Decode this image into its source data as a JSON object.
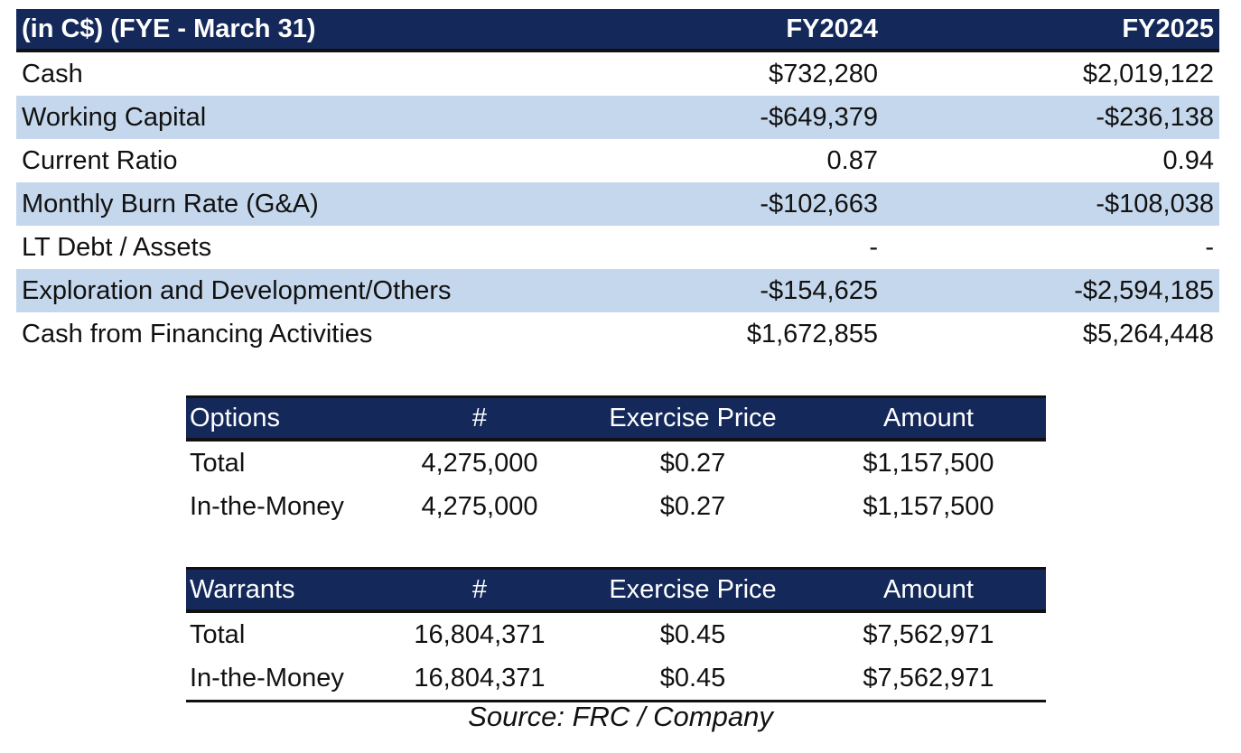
{
  "summary": {
    "header": {
      "label": "(in C$)  (FYE - March 31)",
      "col1": "FY2024",
      "col2": "FY2025"
    },
    "rows": [
      {
        "label": "Cash",
        "fy2024": "$732,280",
        "fy2025": "$2,019,122"
      },
      {
        "label": "Working Capital",
        "fy2024": "-$649,379",
        "fy2025": "-$236,138"
      },
      {
        "label": "Current Ratio",
        "fy2024": "0.87",
        "fy2025": "0.94"
      },
      {
        "label": "Monthly Burn Rate (G&A)",
        "fy2024": "-$102,663",
        "fy2025": "-$108,038"
      },
      {
        "label": "LT Debt / Assets",
        "fy2024": "-",
        "fy2025": "-"
      },
      {
        "label": "Exploration and Development/Others",
        "fy2024": "-$154,625",
        "fy2025": "-$2,594,185"
      },
      {
        "label": "Cash from Financing Activities",
        "fy2024": "$1,672,855",
        "fy2025": "$5,264,448"
      }
    ]
  },
  "options": {
    "header": {
      "label": "Options",
      "count": "#",
      "price": "Exercise Price",
      "amount": "Amount"
    },
    "rows": [
      {
        "label": "Total",
        "count": "4,275,000",
        "price": "$0.27",
        "amount": "$1,157,500"
      },
      {
        "label": "In-the-Money",
        "count": "4,275,000",
        "price": "$0.27",
        "amount": "$1,157,500"
      }
    ]
  },
  "warrants": {
    "header": {
      "label": "Warrants",
      "count": "#",
      "price": "Exercise Price",
      "amount": "Amount"
    },
    "rows": [
      {
        "label": "Total",
        "count": "16,804,371",
        "price": "$0.45",
        "amount": "$7,562,971"
      },
      {
        "label": "In-the-Money",
        "count": "16,804,371",
        "price": "$0.45",
        "amount": "$7,562,971"
      }
    ]
  },
  "source": "Source: FRC / Company",
  "colors": {
    "header_bg": "#14295a",
    "header_text": "#ffffff",
    "row_shade": "#c5d7ec"
  }
}
